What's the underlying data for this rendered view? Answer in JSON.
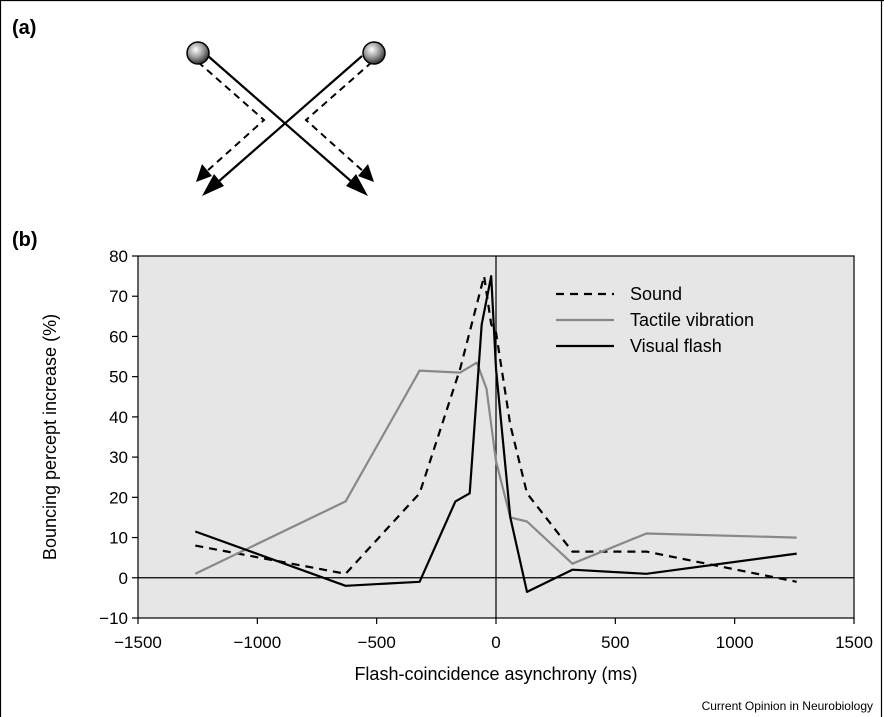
{
  "panel_a": {
    "label": "(a)"
  },
  "panel_b": {
    "label": "(b)"
  },
  "credit": "Current Opinion in Neurobiology",
  "colors": {
    "plot_bg": "#e6e6e6",
    "sound": "#000000",
    "tactile": "#888888",
    "visual": "#000000"
  },
  "chart_data": {
    "type": "line",
    "title": "",
    "xlabel": "Flash-coincidence asynchrony (ms)",
    "ylabel": "Bouncing percept increase (%)",
    "xlim": [
      -1500,
      1500
    ],
    "ylim": [
      -10,
      80
    ],
    "xticks": [
      -1500,
      -1000,
      -500,
      0,
      500,
      1000,
      1500
    ],
    "yticks": [
      -10,
      0,
      10,
      20,
      30,
      40,
      50,
      60,
      70,
      80
    ],
    "xtick_labels": [
      "−1500",
      "−1000",
      "−500",
      "0",
      "500",
      "1000",
      "1500"
    ],
    "ytick_labels": [
      "−10",
      "0",
      "10",
      "20",
      "30",
      "40",
      "50",
      "60",
      "70",
      "80"
    ],
    "legend_position": "top-right",
    "grid": false,
    "series": [
      {
        "name": "Sound",
        "style": "dashed",
        "color": "#000000",
        "x": [
          -1260,
          -630,
          -320,
          -150,
          -50,
          -20,
          0,
          60,
          130,
          320,
          630,
          1260
        ],
        "y": [
          8,
          1,
          21,
          52,
          75,
          63,
          61,
          38,
          21,
          6.5,
          6.5,
          -1
        ]
      },
      {
        "name": "Tactile vibration",
        "style": "solid",
        "color": "#888888",
        "x": [
          -1260,
          -630,
          -320,
          -150,
          -80,
          -40,
          0,
          60,
          130,
          320,
          630,
          1260
        ],
        "y": [
          1,
          19,
          51.5,
          51,
          53.5,
          47,
          29,
          15,
          14,
          3.5,
          11,
          10
        ]
      },
      {
        "name": "Visual flash",
        "style": "solid",
        "color": "#000000",
        "x": [
          -1260,
          -630,
          -320,
          -170,
          -110,
          -60,
          -20,
          0,
          60,
          130,
          320,
          630,
          1260
        ],
        "y": [
          11.5,
          -2,
          -1,
          19,
          21,
          63,
          75,
          52,
          15,
          -3.5,
          2,
          1,
          6
        ]
      }
    ]
  }
}
